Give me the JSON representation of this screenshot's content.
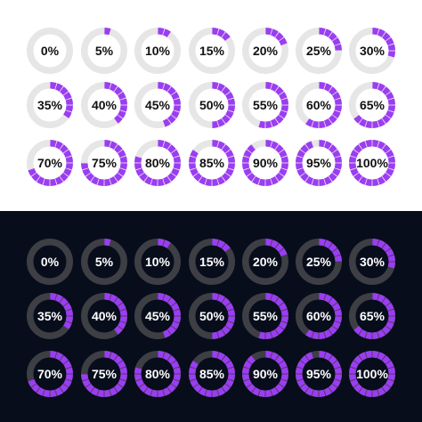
{
  "theme": {
    "accent": "#9b3df2",
    "light": {
      "background": "#ffffff",
      "track": "#e6e6e6",
      "text": "#111111"
    },
    "dark": {
      "background": "#070d1b",
      "track": "#3d3f45",
      "text": "#ffffff"
    }
  },
  "segments_per_ring": 20,
  "indicators": [
    {
      "label": "0%",
      "value": 0
    },
    {
      "label": "5%",
      "value": 5
    },
    {
      "label": "10%",
      "value": 10
    },
    {
      "label": "15%",
      "value": 15
    },
    {
      "label": "20%",
      "value": 20
    },
    {
      "label": "25%",
      "value": 25
    },
    {
      "label": "30%",
      "value": 30
    },
    {
      "label": "35%",
      "value": 35
    },
    {
      "label": "40%",
      "value": 40
    },
    {
      "label": "45%",
      "value": 45
    },
    {
      "label": "50%",
      "value": 50
    },
    {
      "label": "55%",
      "value": 55
    },
    {
      "label": "60%",
      "value": 60
    },
    {
      "label": "65%",
      "value": 65
    },
    {
      "label": "70%",
      "value": 70
    },
    {
      "label": "75%",
      "value": 75
    },
    {
      "label": "80%",
      "value": 80
    },
    {
      "label": "85%",
      "value": 85
    },
    {
      "label": "90%",
      "value": 90
    },
    {
      "label": "95%",
      "value": 95
    },
    {
      "label": "100%",
      "value": 100
    }
  ]
}
